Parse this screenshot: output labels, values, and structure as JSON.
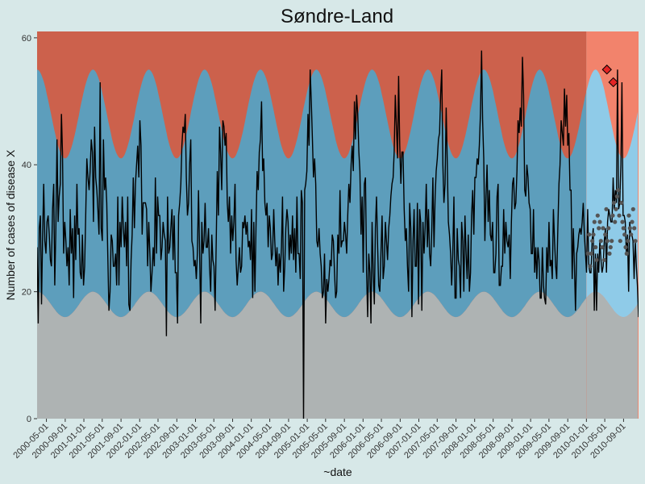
{
  "chart_data": {
    "type": "line",
    "title": "Søndre-Land",
    "xlabel": "~date",
    "ylabel": "Number of cases of disease X",
    "ylim": [
      0,
      61
    ],
    "xlim": [
      "2000-03-01",
      "2010-12-08"
    ],
    "yticks": [
      0,
      20,
      40,
      60
    ],
    "xticks": [
      "2000-05-01",
      "2000-09-01",
      "2001-01-01",
      "2001-05-01",
      "2001-09-01",
      "2002-01-01",
      "2002-05-01",
      "2002-09-01",
      "2003-01-01",
      "2003-05-01",
      "2003-09-01",
      "2004-01-01",
      "2004-05-01",
      "2004-09-01",
      "2005-01-01",
      "2005-05-01",
      "2005-09-01",
      "2006-01-01",
      "2006-05-01",
      "2006-09-01",
      "2007-01-01",
      "2007-05-01",
      "2007-09-01",
      "2008-01-01",
      "2008-05-01",
      "2008-09-01",
      "2009-01-01",
      "2009-05-01",
      "2009-09-01",
      "2010-01-01",
      "2010-05-01",
      "2010-09-01"
    ],
    "grid": false,
    "legend": "none",
    "forecast_start": "2010-01-01",
    "bands": {
      "lower_threshold": {
        "trough": 16,
        "peak": 20
      },
      "upper_threshold": {
        "trough": 41,
        "peak": 55
      },
      "seasonal_peak_month": 3
    },
    "series": [
      {
        "values": [
          27,
          15,
          30,
          32,
          18,
          29,
          37,
          28,
          26,
          31,
          32,
          29,
          25,
          24,
          33,
          37,
          21,
          30,
          44,
          31,
          35,
          37,
          48,
          42,
          26,
          31,
          28,
          24,
          27,
          21,
          33,
          26,
          30,
          19,
          32,
          25,
          37,
          29,
          30,
          23,
          22,
          29,
          21,
          24,
          32,
          41,
          38,
          36,
          39,
          44,
          42,
          31,
          46,
          38,
          36,
          33,
          29,
          53,
          30,
          28,
          44,
          36,
          38,
          34,
          25,
          17,
          20,
          29,
          28,
          24,
          24,
          26,
          21,
          35,
          21,
          31,
          27,
          35,
          30,
          27,
          31,
          24,
          35,
          18,
          17,
          25,
          29,
          38,
          30,
          37,
          40,
          43,
          38,
          47,
          43,
          29,
          34,
          34,
          34,
          33,
          24,
          31,
          26,
          20,
          23,
          27,
          24,
          38,
          26,
          35,
          32,
          32,
          25,
          27,
          31,
          29,
          28,
          13,
          35,
          26,
          27,
          30,
          33,
          25,
          32,
          23,
          23,
          15,
          32,
          34,
          37,
          43,
          46,
          45,
          48,
          38,
          32,
          34,
          40,
          44,
          28,
          27,
          24,
          25,
          22,
          26,
          36,
          26,
          15,
          31,
          26,
          28,
          34,
          27,
          27,
          30,
          24,
          20,
          29,
          25,
          24,
          17,
          28,
          39,
          32,
          46,
          42,
          36,
          47,
          46,
          43,
          45,
          34,
          31,
          35,
          26,
          32,
          28,
          31,
          37,
          25,
          21,
          24,
          27,
          23,
          24,
          31,
          30,
          32,
          29,
          31,
          27,
          28,
          25,
          33,
          19,
          31,
          20,
          30,
          39,
          36,
          42,
          44,
          50,
          39,
          41,
          34,
          32,
          34,
          27,
          32,
          30,
          25,
          26,
          33,
          28,
          24,
          27,
          21,
          26,
          23,
          27,
          35,
          20,
          24,
          30,
          33,
          31,
          25,
          29,
          26,
          32,
          25,
          30,
          23,
          35,
          26,
          26,
          22,
          36,
          34,
          0,
          36,
          37,
          39,
          48,
          43,
          55,
          50,
          44,
          38,
          41,
          37,
          28,
          27,
          30,
          26,
          24,
          19,
          20,
          26,
          15,
          22,
          20,
          22,
          25,
          24,
          29,
          28,
          23,
          19,
          20,
          29,
          26,
          36,
          27,
          28,
          28,
          31,
          29,
          26,
          32,
          37,
          34,
          40,
          43,
          39,
          50,
          44,
          51,
          48,
          42,
          39,
          29,
          35,
          23,
          37,
          38,
          23,
          16,
          26,
          23,
          15,
          31,
          23,
          18,
          30,
          35,
          27,
          21,
          20,
          26,
          32,
          22,
          24,
          31,
          28,
          25,
          30,
          32,
          35,
          37,
          38,
          42,
          51,
          46,
          41,
          54,
          43,
          37,
          42,
          42,
          33,
          28,
          30,
          24,
          20,
          34,
          30,
          16,
          28,
          33,
          24,
          24,
          34,
          18,
          33,
          31,
          17,
          31,
          26,
          30,
          37,
          27,
          33,
          26,
          24,
          30,
          38,
          27,
          35,
          39,
          41,
          44,
          45,
          51,
          55,
          40,
          34,
          37,
          49,
          40,
          31,
          29,
          26,
          21,
          26,
          35,
          19,
          19,
          30,
          25,
          24,
          19,
          31,
          28,
          20,
          32,
          26,
          22,
          29,
          20,
          23,
          32,
          36,
          29,
          38,
          38,
          41,
          40,
          43,
          48,
          58,
          47,
          41,
          28,
          35,
          40,
          31,
          36,
          29,
          28,
          31,
          23,
          23,
          26,
          35,
          37,
          21,
          21,
          24,
          24,
          33,
          26,
          31,
          28,
          27,
          29,
          22,
          31,
          37,
          38,
          33,
          34,
          39,
          47,
          45,
          49,
          46,
          57,
          51,
          36,
          35,
          40,
          38,
          34,
          33,
          26,
          26,
          33,
          23,
          27,
          22,
          27,
          25,
          19,
          19,
          27,
          21,
          19,
          18,
          27,
          23,
          31,
          24,
          25,
          22,
          33,
          28,
          24,
          22,
          30,
          37,
          40,
          47,
          45,
          43,
          52,
          46,
          51,
          43,
          45,
          36,
          36,
          22,
          30,
          24,
          17,
          26,
          27,
          29,
          30,
          29,
          31,
          34,
          29,
          26,
          23,
          33,
          24,
          23,
          23,
          28,
          30,
          17,
          26,
          17,
          26,
          23,
          28,
          25,
          23,
          24,
          28,
          30,
          23,
          31,
          33,
          32,
          31,
          31,
          38,
          33,
          36,
          34,
          55,
          33,
          34,
          40,
          53,
          32,
          32,
          31,
          26,
          29,
          20,
          31,
          29,
          29,
          28,
          22,
          28,
          24,
          21,
          16
        ]
      },
      {
        "type": "scatter",
        "values": [
          26,
          29,
          24,
          26,
          28,
          29,
          31,
          27,
          25,
          32,
          30,
          31,
          28,
          27,
          30,
          25,
          29,
          33,
          28,
          30,
          26,
          27,
          28,
          32,
          34,
          31,
          33,
          35,
          36,
          32,
          28,
          34,
          31,
          30,
          29,
          27,
          26,
          28,
          32,
          30,
          29,
          31,
          33,
          30,
          28
        ]
      },
      {
        "name": "alarms",
        "type": "scatter",
        "x": [
          "2010-05-15",
          "2010-06-26"
        ],
        "values": [
          55,
          53
        ]
      }
    ],
    "colors": {
      "panel": "#aeb3b3",
      "upper_region": "#cc614c",
      "middle_band": "#5d9ebc",
      "line": "#000000",
      "forecast_upper_region": "#f2836c",
      "forecast_middle_band": "#8fcbe8",
      "forecast_points": "#555555",
      "alarm_points": "#e32424"
    }
  }
}
